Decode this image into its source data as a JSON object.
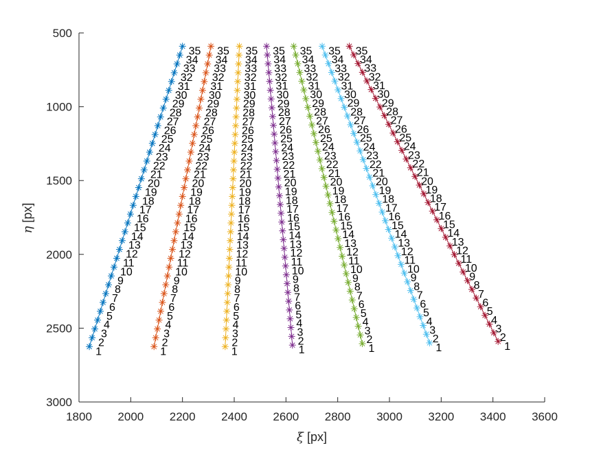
{
  "chart_data": {
    "type": "scatter",
    "xlabel": {
      "symbol": "ξ",
      "unit": " [px]"
    },
    "ylabel": {
      "symbol": "η",
      "unit": " [px]"
    },
    "xlim": [
      1800,
      3600
    ],
    "ylim": [
      500,
      3000
    ],
    "y_reversed": true,
    "xticks": [
      1800,
      2000,
      2200,
      2400,
      2600,
      2800,
      3000,
      3200,
      3400,
      3600
    ],
    "yticks": [
      500,
      1000,
      1500,
      2000,
      2500,
      3000
    ],
    "grid": false,
    "marker": "asterisk",
    "point_labels": [
      "1",
      "2",
      "3",
      "4",
      "5",
      "6",
      "7",
      "8",
      "9",
      "10",
      "11",
      "12",
      "13",
      "14",
      "15",
      "16",
      "17",
      "18",
      "19",
      "20",
      "21",
      "22",
      "23",
      "24",
      "25",
      "26",
      "27",
      "28",
      "29",
      "30",
      "31",
      "32",
      "33",
      "34",
      "35"
    ],
    "series": [
      {
        "color": "#0072BD",
        "start": [
          1840,
          2625
        ],
        "end": [
          2200,
          590
        ]
      },
      {
        "color": "#D95319",
        "start": [
          2090,
          2625
        ],
        "end": [
          2310,
          590
        ]
      },
      {
        "color": "#EDB120",
        "start": [
          2365,
          2625
        ],
        "end": [
          2420,
          590
        ]
      },
      {
        "color": "#7E2F8E",
        "start": [
          2625,
          2615
        ],
        "end": [
          2525,
          590
        ]
      },
      {
        "color": "#77AC30",
        "start": [
          2895,
          2605
        ],
        "end": [
          2630,
          590
        ]
      },
      {
        "color": "#4DBEEE",
        "start": [
          3155,
          2600
        ],
        "end": [
          2740,
          590
        ]
      },
      {
        "color": "#A2142F",
        "start": [
          3420,
          2590
        ],
        "end": [
          2845,
          590
        ]
      }
    ]
  }
}
